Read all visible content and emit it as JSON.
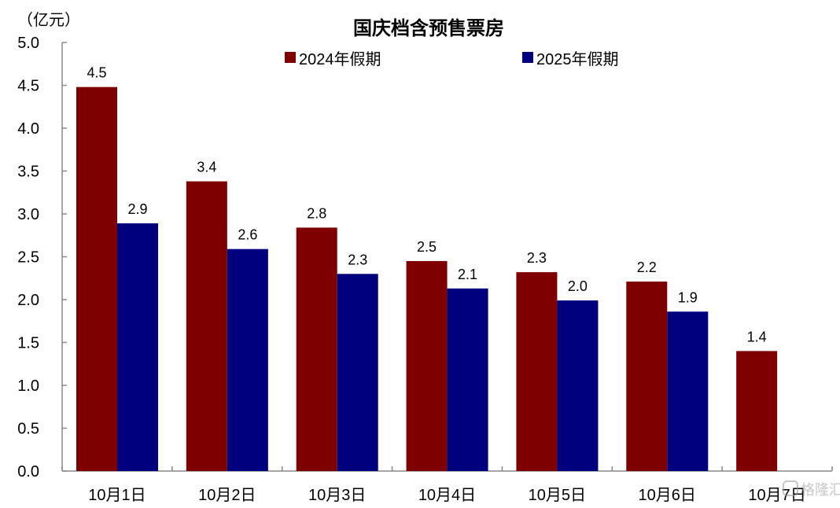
{
  "chart_data": {
    "type": "bar",
    "title": "国庆档含预售票房",
    "ylabel": "（亿元）",
    "xlabel": "",
    "ylim": [
      0,
      5.0
    ],
    "yticks": [
      "0.0",
      "0.5",
      "1.0",
      "1.5",
      "2.0",
      "2.5",
      "3.0",
      "3.5",
      "4.0",
      "4.5",
      "5.0"
    ],
    "grid": false,
    "legend_position": "top",
    "categories": [
      "10月1日",
      "10月2日",
      "10月3日",
      "10月4日",
      "10月5日",
      "10月6日",
      "10月7日"
    ],
    "series": [
      {
        "name": "2024年假期",
        "color": "#7f0000",
        "values": [
          4.48,
          3.38,
          2.84,
          2.45,
          2.32,
          2.21,
          1.4
        ],
        "labels": [
          "4.5",
          "3.4",
          "2.8",
          "2.5",
          "2.3",
          "2.2",
          "1.4"
        ]
      },
      {
        "name": "2025年假期",
        "color": "#00007f",
        "values": [
          2.89,
          2.59,
          2.3,
          2.13,
          1.99,
          1.86,
          null
        ],
        "labels": [
          "2.9",
          "2.6",
          "2.3",
          "2.1",
          "2.0",
          "1.9",
          ""
        ]
      }
    ]
  },
  "watermark": "格隆汇"
}
